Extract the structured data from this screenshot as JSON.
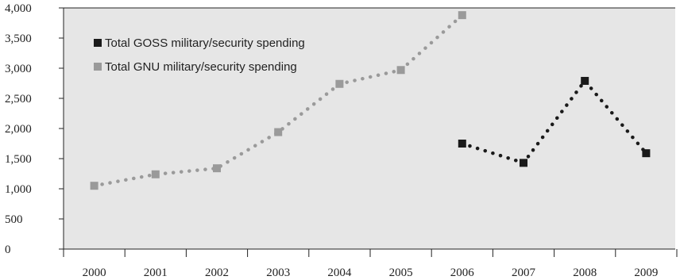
{
  "chart_data": {
    "type": "line",
    "title": "",
    "xlabel": "",
    "ylabel": "",
    "categories": [
      "2000",
      "2001",
      "2002",
      "2003",
      "2004",
      "2005",
      "2006",
      "2007",
      "2008",
      "2009"
    ],
    "y_ticks": [
      "0",
      "500",
      "1,000",
      "1,500",
      "2,000",
      "2,500",
      "3,000",
      "3,500",
      "4,000"
    ],
    "ylim": [
      0,
      4000
    ],
    "grid": false,
    "legend_position": "top-left",
    "series": [
      {
        "name": "Total GOSS military/security spending",
        "color": "#1a1a1a",
        "line_style": "dotted",
        "marker": "square",
        "points": [
          {
            "x": "2006",
            "y": 1750
          },
          {
            "x": "2007",
            "y": 1430
          },
          {
            "x": "2008",
            "y": 2790
          },
          {
            "x": "2009",
            "y": 1590
          }
        ]
      },
      {
        "name": "Total GNU military/security spending",
        "color": "#9a9a9a",
        "line_style": "dotted",
        "marker": "square",
        "points": [
          {
            "x": "2000",
            "y": 1050
          },
          {
            "x": "2001",
            "y": 1240
          },
          {
            "x": "2002",
            "y": 1340
          },
          {
            "x": "2003",
            "y": 1940
          },
          {
            "x": "2004",
            "y": 2740
          },
          {
            "x": "2005",
            "y": 2970
          },
          {
            "x": "2006",
            "y": 3880
          }
        ]
      }
    ]
  }
}
